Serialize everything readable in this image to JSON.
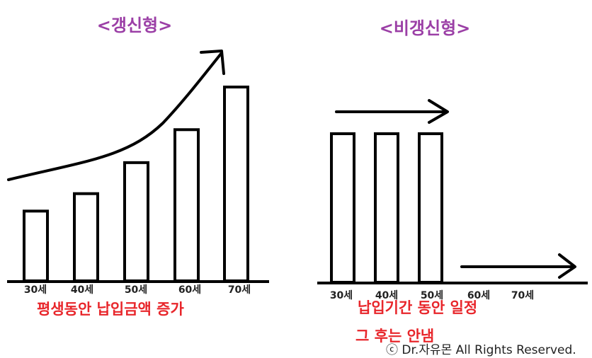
{
  "left_panel": {
    "title": "<갱신형>",
    "age_labels": [
      "30세",
      "40세",
      "50세",
      "60세",
      "70세"
    ],
    "bar_levels": [
      0.36,
      0.45,
      0.61,
      0.78,
      1.0
    ],
    "caption": "평생동안 납입금액 증가"
  },
  "right_panel": {
    "title": "<비갱신형>",
    "age_labels": [
      "30세",
      "40세",
      "50세",
      "60세",
      "70세"
    ],
    "bar_levels": [
      1.0,
      1.0,
      1.0,
      0,
      0
    ],
    "caption_line1": "납입기간 동안 일정",
    "caption_line2": "그 후는 안냄"
  },
  "copyright": "ⓒ Dr.자유몬 All Rights Reserved.",
  "colors": {
    "title": "#9b3fa6",
    "caption": "#e8262b",
    "stroke": "#000000"
  }
}
